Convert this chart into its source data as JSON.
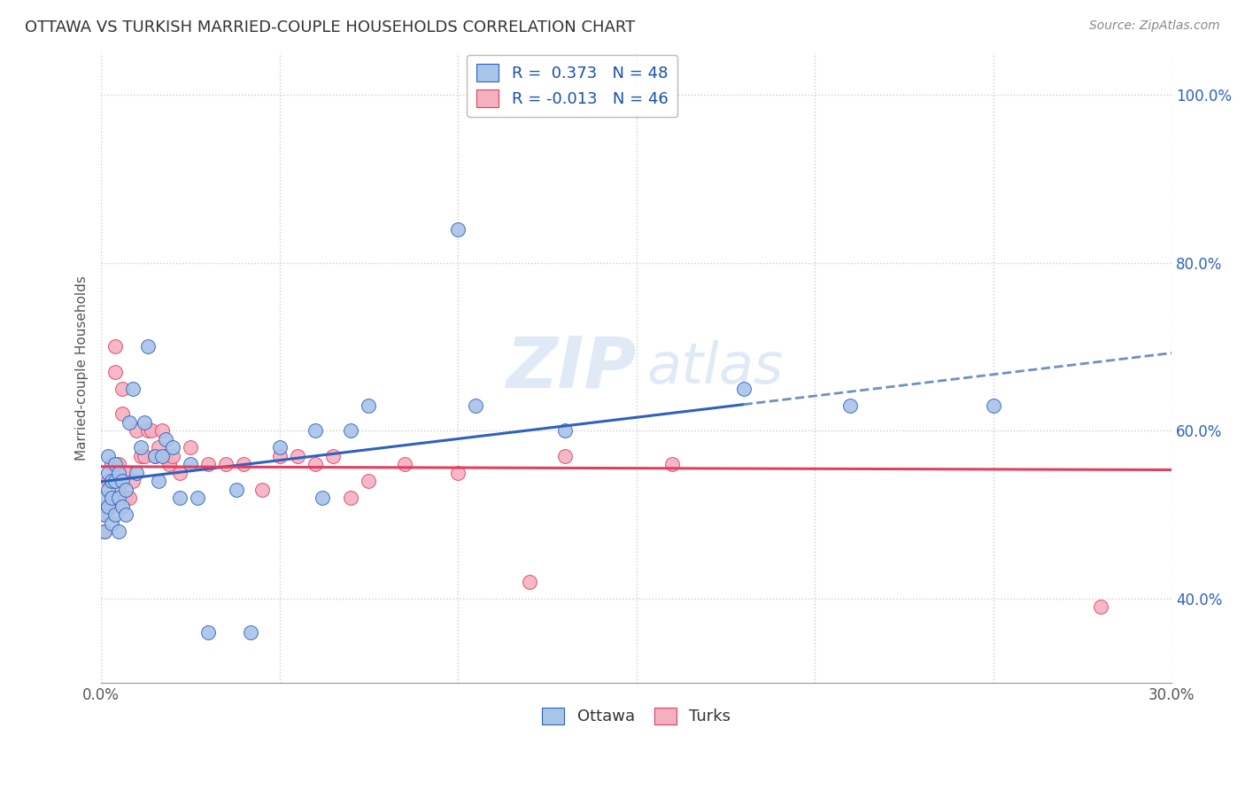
{
  "title": "OTTAWA VS TURKISH MARRIED-COUPLE HOUSEHOLDS CORRELATION CHART",
  "source": "Source: ZipAtlas.com",
  "ylabel": "Married-couple Households",
  "ytick_labels": [
    "40.0%",
    "60.0%",
    "80.0%",
    "100.0%"
  ],
  "ytick_values": [
    0.4,
    0.6,
    0.8,
    1.0
  ],
  "xlim": [
    0.0,
    0.3
  ],
  "ylim": [
    0.3,
    1.05
  ],
  "watermark_zip": "ZIP",
  "watermark_atlas": "atlas",
  "legend_line1": "R =  0.373   N = 48",
  "legend_line2": "R = -0.013   N = 46",
  "ottawa_color": "#a8c4e8",
  "turks_color": "#f5b0c0",
  "line_ottawa_color": "#3060c0",
  "line_turks_color": "#e04060",
  "ottawa_scatter_x": [
    0.001,
    0.001,
    0.001,
    0.002,
    0.002,
    0.002,
    0.002,
    0.003,
    0.003,
    0.003,
    0.004,
    0.004,
    0.004,
    0.005,
    0.005,
    0.005,
    0.006,
    0.006,
    0.007,
    0.007,
    0.008,
    0.009,
    0.01,
    0.011,
    0.012,
    0.013,
    0.015,
    0.016,
    0.017,
    0.018,
    0.02,
    0.022,
    0.025,
    0.027,
    0.03,
    0.038,
    0.042,
    0.05,
    0.06,
    0.062,
    0.07,
    0.075,
    0.1,
    0.105,
    0.13,
    0.18,
    0.21,
    0.25
  ],
  "ottawa_scatter_y": [
    0.48,
    0.5,
    0.52,
    0.51,
    0.53,
    0.55,
    0.57,
    0.49,
    0.52,
    0.54,
    0.5,
    0.54,
    0.56,
    0.48,
    0.52,
    0.55,
    0.51,
    0.54,
    0.5,
    0.53,
    0.61,
    0.65,
    0.55,
    0.58,
    0.61,
    0.7,
    0.57,
    0.54,
    0.57,
    0.59,
    0.58,
    0.52,
    0.56,
    0.52,
    0.36,
    0.53,
    0.36,
    0.58,
    0.6,
    0.52,
    0.6,
    0.63,
    0.84,
    0.63,
    0.6,
    0.65,
    0.63,
    0.63
  ],
  "turks_scatter_x": [
    0.001,
    0.001,
    0.002,
    0.002,
    0.003,
    0.003,
    0.003,
    0.004,
    0.004,
    0.005,
    0.005,
    0.006,
    0.006,
    0.007,
    0.007,
    0.008,
    0.009,
    0.01,
    0.011,
    0.012,
    0.013,
    0.014,
    0.015,
    0.016,
    0.017,
    0.018,
    0.019,
    0.02,
    0.022,
    0.025,
    0.03,
    0.035,
    0.04,
    0.045,
    0.05,
    0.055,
    0.06,
    0.065,
    0.07,
    0.075,
    0.085,
    0.1,
    0.12,
    0.13,
    0.16,
    0.28
  ],
  "turks_scatter_y": [
    0.48,
    0.5,
    0.51,
    0.54,
    0.51,
    0.54,
    0.56,
    0.67,
    0.7,
    0.53,
    0.56,
    0.62,
    0.65,
    0.52,
    0.55,
    0.52,
    0.54,
    0.6,
    0.57,
    0.57,
    0.6,
    0.6,
    0.57,
    0.58,
    0.6,
    0.57,
    0.56,
    0.57,
    0.55,
    0.58,
    0.56,
    0.56,
    0.56,
    0.53,
    0.57,
    0.57,
    0.56,
    0.57,
    0.52,
    0.54,
    0.56,
    0.55,
    0.42,
    0.57,
    0.56,
    0.39
  ],
  "background_color": "#ffffff",
  "grid_color": "#cccccc",
  "dashed_line_color": "#7090c0"
}
